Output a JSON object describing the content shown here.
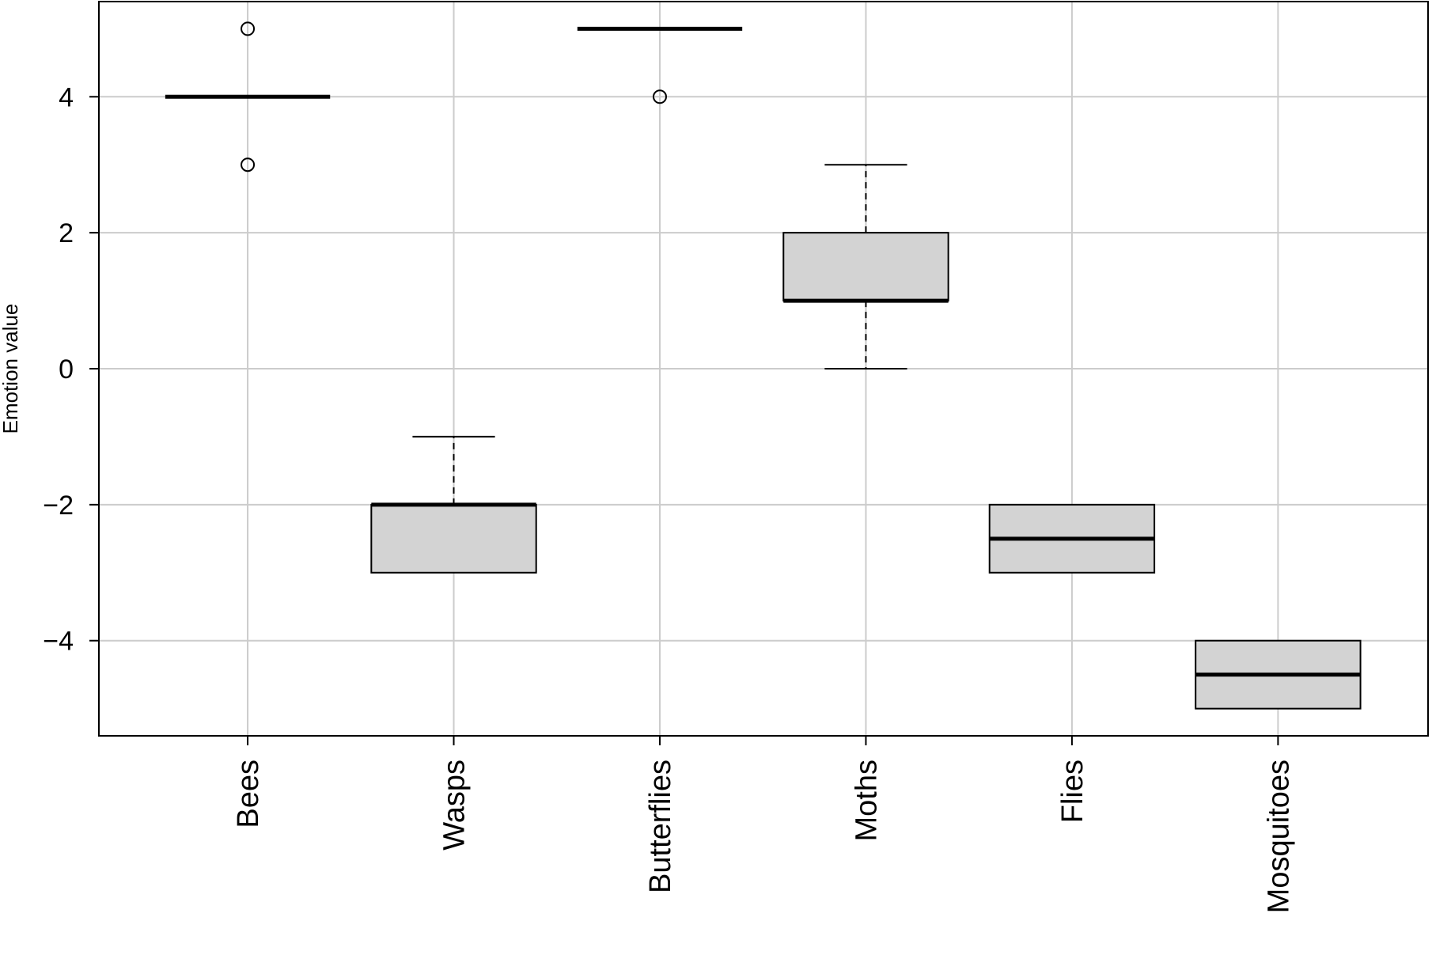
{
  "chart_data": {
    "type": "box",
    "title": "",
    "xlabel": "",
    "ylabel": "Emotion value",
    "ylim": [
      -5.4,
      5.4
    ],
    "yticks": [
      -4,
      -2,
      0,
      2,
      4
    ],
    "ytick_labels": [
      "−4",
      "−2",
      "0",
      "2",
      "4"
    ],
    "grid": true,
    "categories": [
      "Bees",
      "Wasps",
      "Butterflies",
      "Moths",
      "Flies",
      "Mosquitoes"
    ],
    "boxes": [
      {
        "category": "Bees",
        "whisker_low": 4,
        "q1": 4,
        "median": 4,
        "q3": 4,
        "whisker_high": 4,
        "outliers": [
          5,
          3
        ]
      },
      {
        "category": "Wasps",
        "whisker_low": -3,
        "q1": -3,
        "median": -2,
        "q3": -2,
        "whisker_high": -1,
        "outliers": []
      },
      {
        "category": "Butterflies",
        "whisker_low": 5,
        "q1": 5,
        "median": 5,
        "q3": 5,
        "whisker_high": 5,
        "outliers": [
          4
        ]
      },
      {
        "category": "Moths",
        "whisker_low": 0,
        "q1": 1,
        "median": 1,
        "q3": 2,
        "whisker_high": 3,
        "outliers": []
      },
      {
        "category": "Flies",
        "whisker_low": -3,
        "q1": -3,
        "median": -2.5,
        "q3": -2,
        "whisker_high": -2,
        "outliers": []
      },
      {
        "category": "Mosquitoes",
        "whisker_low": -5,
        "q1": -5,
        "median": -4.5,
        "q3": -4,
        "whisker_high": -4,
        "outliers": []
      }
    ],
    "colors": {
      "box_fill": "#d3d3d3",
      "grid": "#cccccc",
      "line": "#000000"
    }
  }
}
